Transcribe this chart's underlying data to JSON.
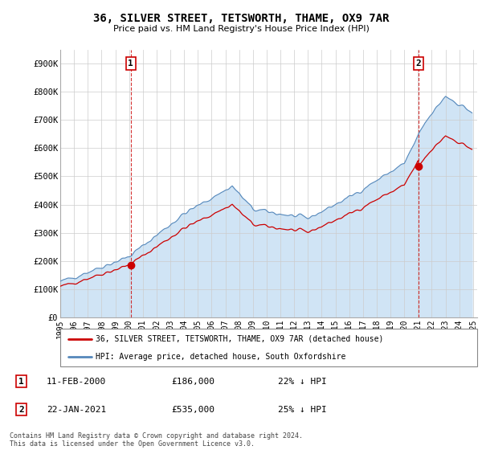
{
  "title": "36, SILVER STREET, TETSWORTH, THAME, OX9 7AR",
  "subtitle": "Price paid vs. HM Land Registry's House Price Index (HPI)",
  "red_line_label": "36, SILVER STREET, TETSWORTH, THAME, OX9 7AR (detached house)",
  "blue_line_label": "HPI: Average price, detached house, South Oxfordshire",
  "annotation1_date": "11-FEB-2000",
  "annotation1_price": "£186,000",
  "annotation1_hpi": "22% ↓ HPI",
  "annotation1_year": 2000.12,
  "annotation1_value": 186000,
  "annotation2_date": "22-JAN-2021",
  "annotation2_price": "£535,000",
  "annotation2_hpi": "25% ↓ HPI",
  "annotation2_year": 2021.05,
  "annotation2_value": 535000,
  "footer": "Contains HM Land Registry data © Crown copyright and database right 2024.\nThis data is licensed under the Open Government Licence v3.0.",
  "ylim": [
    0,
    950000
  ],
  "yticks": [
    0,
    100000,
    200000,
    300000,
    400000,
    500000,
    600000,
    700000,
    800000,
    900000
  ],
  "ytick_labels": [
    "£0",
    "£100K",
    "£200K",
    "£300K",
    "£400K",
    "£500K",
    "£600K",
    "£700K",
    "£800K",
    "£900K"
  ],
  "red_color": "#cc0000",
  "blue_color": "#5588bb",
  "blue_fill_color": "#d0e4f5",
  "background_color": "#ffffff",
  "grid_color": "#cccccc",
  "sale_years": [
    2000.12,
    2021.05
  ],
  "sale_values": [
    186000,
    535000
  ],
  "xtick_years": [
    1995,
    1996,
    1997,
    1998,
    1999,
    2000,
    2001,
    2002,
    2003,
    2004,
    2005,
    2006,
    2007,
    2008,
    2009,
    2010,
    2011,
    2012,
    2013,
    2014,
    2015,
    2016,
    2017,
    2018,
    2019,
    2020,
    2021,
    2022,
    2023,
    2024,
    2025
  ],
  "xlim": [
    1995.0,
    2025.3
  ]
}
